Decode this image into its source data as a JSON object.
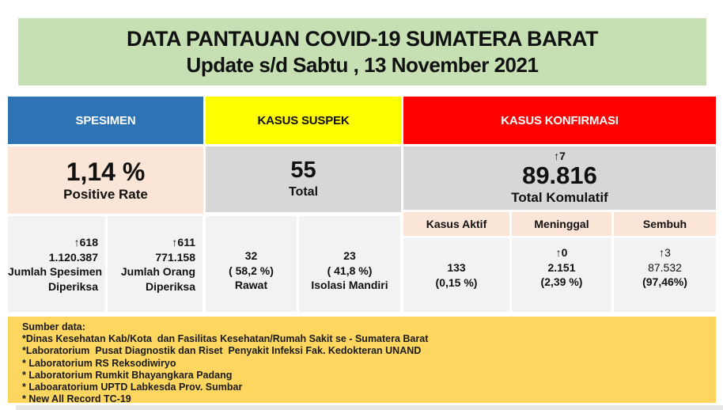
{
  "title": {
    "line1": "DATA PANTAUAN COVID-19 SUMATERA BARAT",
    "line2": "Update s/d Sabtu , 13 November 2021"
  },
  "columns": {
    "spesimen": {
      "header": "SPESIMEN",
      "summary": {
        "value": "1,14 %",
        "label": "Positive Rate"
      },
      "cells": [
        {
          "delta": "↑618",
          "value": "1.120.387",
          "label1": "Jumlah Spesimen",
          "label2": "Diperiksa"
        },
        {
          "delta": "↑611",
          "value": "771.158",
          "label1": "Jumlah Orang",
          "label2": "Diperiksa"
        }
      ]
    },
    "suspek": {
      "header": "KASUS SUSPEK",
      "summary": {
        "value": "55",
        "label": "Total"
      },
      "cells": [
        {
          "value": "32",
          "pct": "( 58,2 %)",
          "label": "Rawat"
        },
        {
          "value": "23",
          "pct": "( 41,8 %)",
          "label": "Isolasi Mandiri"
        }
      ]
    },
    "konfirmasi": {
      "header": "KASUS KONFIRMASI",
      "summary": {
        "delta": "↑7",
        "value": "89.816",
        "label": "Total Komulatif"
      },
      "subheaders": {
        "aktif": "Kasus Aktif",
        "meninggal": "Meninggal",
        "sembuh": "Sembuh"
      },
      "cells": [
        {
          "value": "133",
          "pct": "(0,15 %)"
        },
        {
          "delta": "↑0",
          "value": "2.151",
          "pct": "(2,39 %)"
        },
        {
          "delta": "↑3",
          "value": "87.532",
          "pct": "(97,46%)"
        }
      ]
    }
  },
  "footer": {
    "title": "Sumber data:",
    "items": [
      "*Dinas Kesehatan Kab/Kota  dan Fasilitas Kesehatan/Rumah Sakit se - Sumatera Barat",
      "*Laboratorium  Pusat Diagnostik dan Riset  Penyakit Infeksi Fak. Kedokteran UNAND",
      "* Laboratorium RS Reksodiwiryo",
      "* Laboratorium Rumkit Bhayangkara Padang",
      "* Laboaratorium UPTD Labkesda Prov. Sumbar",
      "* New All Record TC-19"
    ]
  },
  "colors": {
    "title_bg": "#C6E0B4",
    "spesimen_header_bg": "#2E74B5",
    "suspek_header_bg": "#FFFF00",
    "konfirmasi_header_bg": "#FF0000",
    "peach_bg": "#FBE5D6",
    "summary_gray_bg": "#D8D7D7",
    "data_cell_bg": "#F2F2F2",
    "footer_bg": "#FCD65F"
  }
}
